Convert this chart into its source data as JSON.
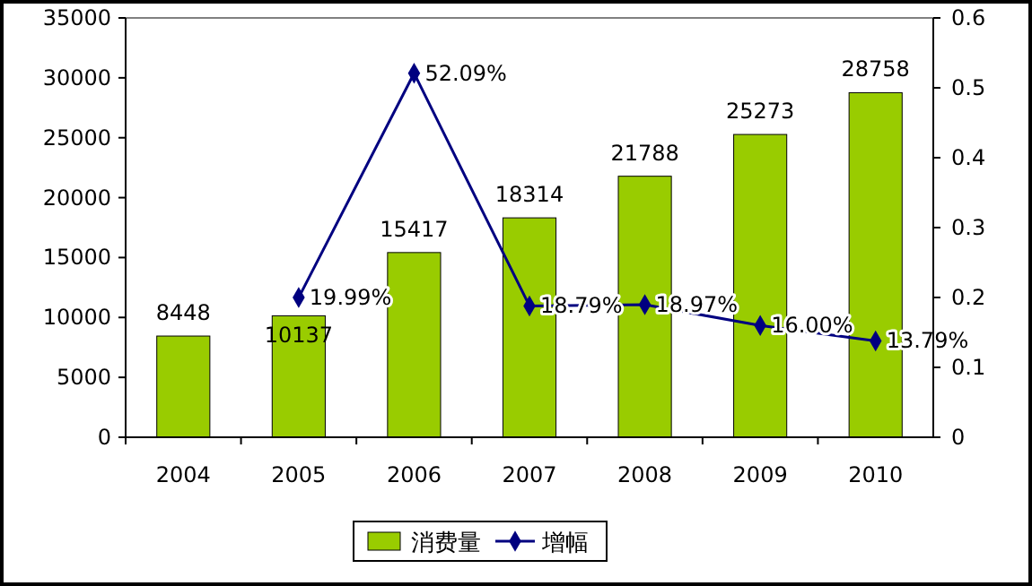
{
  "chart_data": {
    "type": "bar",
    "categories": [
      "2004",
      "2005",
      "2006",
      "2007",
      "2008",
      "2009",
      "2010"
    ],
    "ylim": [
      0,
      35000
    ],
    "yticks": [
      0,
      5000,
      10000,
      15000,
      20000,
      25000,
      30000,
      35000
    ],
    "y2lim": [
      0,
      0.6
    ],
    "y2ticks": [
      0,
      0.1,
      0.2,
      0.3,
      0.4,
      0.5,
      0.6
    ],
    "series": [
      {
        "name": "消费量",
        "color": "#99cc00",
        "values": [
          8448,
          10137,
          15417,
          18314,
          21788,
          25273,
          28758
        ],
        "value_labels": [
          "8448",
          "10137",
          "15417",
          "18314",
          "21788",
          "25273",
          "28758"
        ]
      },
      {
        "type": "line",
        "name": "增幅",
        "color": "#000080",
        "axis": "y2",
        "values": [
          null,
          0.1999,
          0.5209,
          0.1879,
          0.1897,
          0.16,
          0.1379
        ],
        "value_labels": [
          null,
          "19.99%",
          "52.09%",
          "18.79%",
          "18.97%",
          "16.00%",
          "13.79%"
        ]
      }
    ],
    "marker": "diamond",
    "legend": "bottom",
    "grid": false
  }
}
